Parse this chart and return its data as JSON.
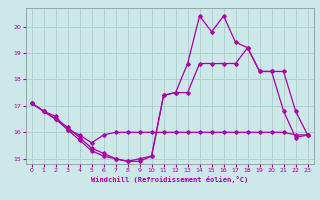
{
  "xlabel": "Windchill (Refroidissement éolien,°C)",
  "background_color": "#cce8e8",
  "grid_color": "#aacccc",
  "line_color": "#aa00aa",
  "xlim": [
    -0.5,
    23.5
  ],
  "ylim": [
    14.8,
    20.7
  ],
  "yticks": [
    15,
    16,
    17,
    18,
    19,
    20
  ],
  "xticks": [
    0,
    1,
    2,
    3,
    4,
    5,
    6,
    7,
    8,
    9,
    10,
    11,
    12,
    13,
    14,
    15,
    16,
    17,
    18,
    19,
    20,
    21,
    22,
    23
  ],
  "series1_x": [
    0,
    1,
    2,
    3,
    4,
    5,
    6,
    7,
    8,
    9,
    10,
    11,
    12,
    13,
    14,
    15,
    16,
    17,
    18,
    19,
    20,
    21,
    22,
    23
  ],
  "series1_y": [
    17.1,
    16.8,
    16.6,
    16.1,
    15.9,
    15.6,
    15.9,
    16.0,
    16.0,
    16.0,
    16.0,
    16.0,
    16.0,
    16.0,
    16.0,
    16.0,
    16.0,
    16.0,
    16.0,
    16.0,
    16.0,
    16.0,
    15.9,
    15.9
  ],
  "series2_x": [
    0,
    1,
    2,
    3,
    4,
    5,
    6,
    7,
    8,
    9,
    10,
    11,
    12,
    13,
    14,
    15,
    16,
    17,
    18,
    19,
    20,
    21,
    22,
    23
  ],
  "series2_y": [
    17.1,
    16.8,
    16.5,
    16.2,
    15.8,
    15.4,
    15.2,
    15.0,
    14.9,
    14.9,
    15.1,
    17.4,
    17.5,
    17.5,
    18.6,
    18.6,
    18.6,
    18.6,
    19.2,
    18.3,
    18.3,
    18.3,
    16.8,
    15.9
  ],
  "series3_x": [
    0,
    1,
    2,
    3,
    4,
    5,
    6,
    7,
    8,
    9,
    10,
    11,
    12,
    13,
    14,
    15,
    16,
    17,
    18,
    19,
    20,
    21,
    22,
    23
  ],
  "series3_y": [
    17.1,
    16.8,
    16.5,
    16.1,
    15.7,
    15.3,
    15.1,
    15.0,
    14.9,
    15.0,
    15.1,
    17.4,
    17.5,
    18.6,
    20.4,
    19.8,
    20.4,
    19.4,
    19.2,
    18.3,
    18.3,
    16.8,
    15.8,
    15.9
  ]
}
